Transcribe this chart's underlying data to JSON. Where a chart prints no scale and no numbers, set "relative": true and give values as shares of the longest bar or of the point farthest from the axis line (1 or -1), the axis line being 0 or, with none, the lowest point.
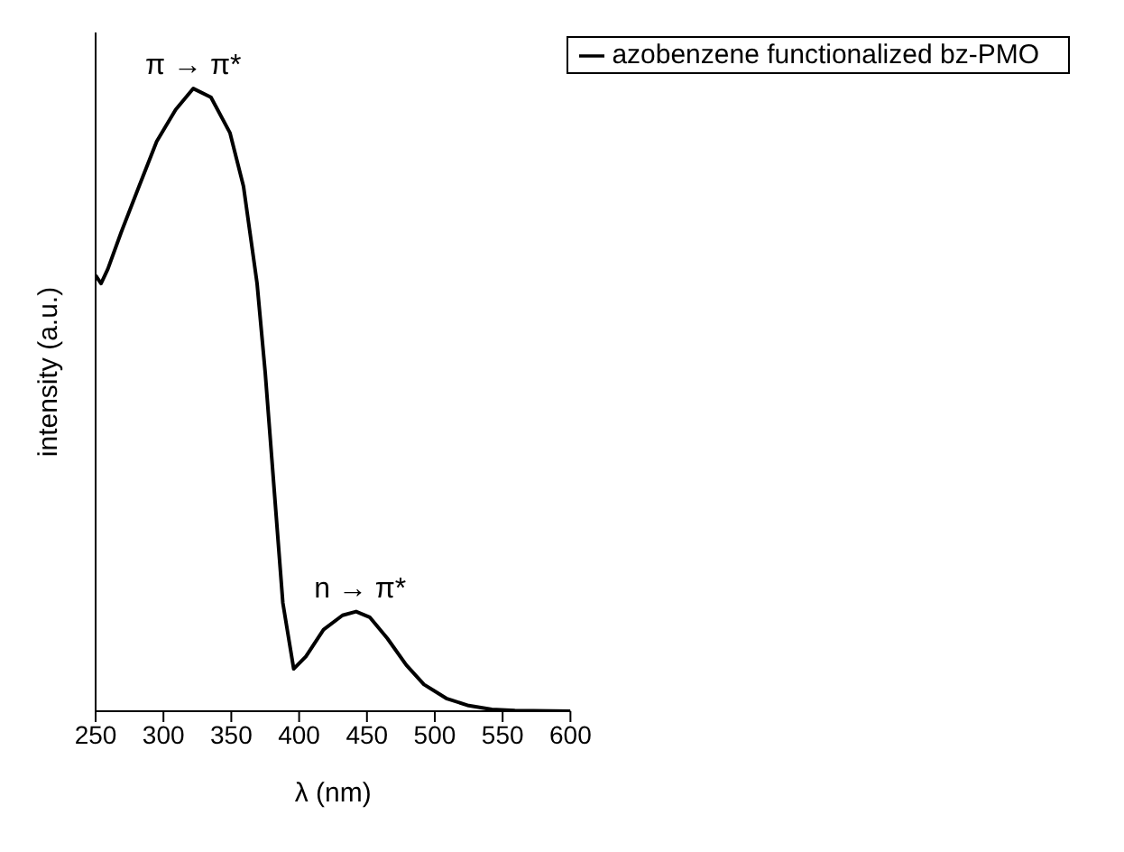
{
  "chart_data": {
    "type": "line",
    "xlabel": "λ (nm)",
    "ylabel": "intensity (a.u.)",
    "relative": true,
    "xlim": [
      250,
      600
    ],
    "xticks": [
      250,
      300,
      350,
      400,
      450,
      500,
      550,
      600
    ],
    "x": [
      250,
      254,
      259,
      269,
      282,
      295,
      309,
      322,
      335,
      349,
      359,
      369,
      375,
      382,
      388,
      396,
      405,
      418,
      432,
      442,
      452,
      465,
      479,
      492,
      509,
      525,
      542,
      559,
      600
    ],
    "series": [
      {
        "name": "azobenzene functionalized bz-PMO",
        "color": "#000000",
        "values": [
          0.7,
          0.687,
          0.71,
          0.77,
          0.843,
          0.915,
          0.966,
          1.0,
          0.986,
          0.929,
          0.843,
          0.687,
          0.544,
          0.345,
          0.174,
          0.068,
          0.088,
          0.131,
          0.154,
          0.16,
          0.151,
          0.117,
          0.074,
          0.043,
          0.02,
          0.009,
          0.003,
          0.001,
          0.0
        ]
      }
    ],
    "annotations": [
      {
        "text": "π → π*",
        "x": 322,
        "y": 1.0
      },
      {
        "text": "n → π*",
        "x": 445,
        "y": 0.16
      }
    ],
    "legend": "top right",
    "marker": "none",
    "line_style": "solid",
    "grid": false
  }
}
